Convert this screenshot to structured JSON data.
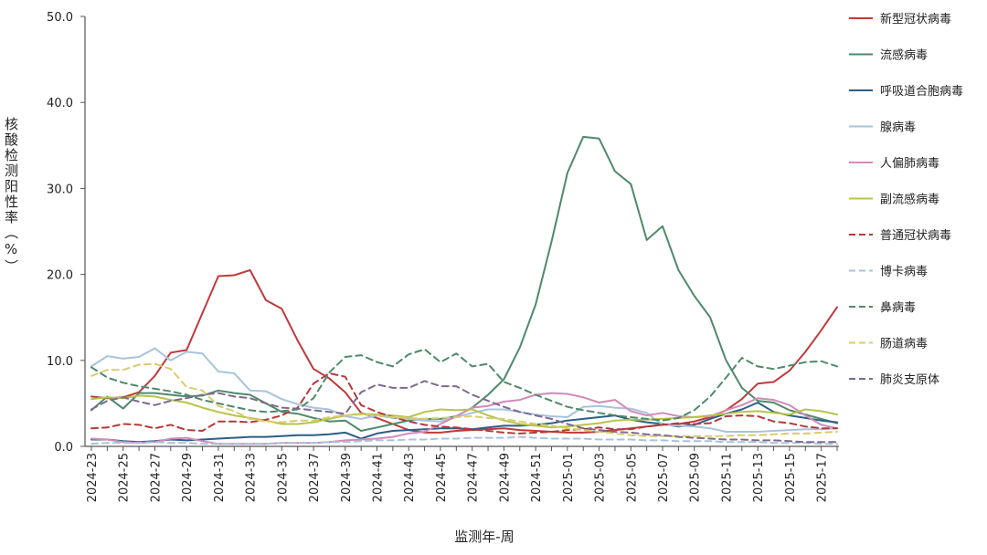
{
  "chart_data": {
    "type": "line",
    "title": "",
    "xlabel": "监测年-周",
    "ylabel": "核酸检测阳性率（%）",
    "ylim": [
      0,
      50
    ],
    "yticks": [
      "0.0",
      "10.0",
      "20.0",
      "30.0",
      "40.0",
      "50.0"
    ],
    "grid": false,
    "legend": "right",
    "x": [
      "2024-23",
      "2024-24",
      "2024-25",
      "2024-26",
      "2024-27",
      "2024-28",
      "2024-29",
      "2024-30",
      "2024-31",
      "2024-32",
      "2024-33",
      "2024-34",
      "2024-35",
      "2024-36",
      "2024-37",
      "2024-38",
      "2024-39",
      "2024-40",
      "2024-41",
      "2024-42",
      "2024-43",
      "2024-44",
      "2024-45",
      "2024-46",
      "2024-47",
      "2024-48",
      "2024-49",
      "2024-50",
      "2024-51",
      "2024-52",
      "2025-01",
      "2025-02",
      "2025-03",
      "2025-04",
      "2025-05",
      "2025-06",
      "2025-07",
      "2025-08",
      "2025-09",
      "2025-10",
      "2025-11",
      "2025-12",
      "2025-13",
      "2025-14",
      "2025-15",
      "2025-16",
      "2025-17",
      "2025-18"
    ],
    "xtick_labels": [
      "2024-23",
      "2024-25",
      "2024-27",
      "2024-29",
      "2024-31",
      "2024-33",
      "2024-35",
      "2024-37",
      "2024-39",
      "2024-41",
      "2024-43",
      "2024-45",
      "2024-47",
      "2024-49",
      "2024-51",
      "2025-01",
      "2025-03",
      "2025-05",
      "2025-07",
      "2025-09",
      "2025-11",
      "2025-13",
      "2025-15",
      "2025-17"
    ],
    "series": [
      {
        "name": "新型冠状病毒",
        "color": "#c0393b",
        "dash": "solid",
        "values": [
          5.8,
          5.6,
          5.7,
          6.3,
          8.2,
          10.9,
          11.2,
          15.5,
          19.8,
          19.9,
          20.5,
          17.0,
          16.0,
          12.3,
          9.0,
          7.9,
          6.3,
          3.9,
          3.3,
          2.6,
          1.9,
          1.6,
          1.6,
          1.8,
          1.9,
          2.0,
          2.1,
          1.9,
          1.8,
          1.7,
          1.6,
          1.6,
          1.7,
          1.9,
          2.1,
          2.3,
          2.5,
          2.6,
          2.9,
          3.4,
          4.2,
          5.5,
          7.3,
          7.5,
          8.8,
          11.0,
          13.5,
          16.2
        ]
      },
      {
        "name": "流感病毒",
        "color": "#4e8a69",
        "dash": "solid",
        "values": [
          4.2,
          5.8,
          4.4,
          6.2,
          6.2,
          6.0,
          5.8,
          5.9,
          6.5,
          6.2,
          6.0,
          5.0,
          4.0,
          3.8,
          3.3,
          2.9,
          3.0,
          1.8,
          2.2,
          2.6,
          3.0,
          3.2,
          3.2,
          3.5,
          4.5,
          6.0,
          7.8,
          11.5,
          16.5,
          23.8,
          31.8,
          36.0,
          35.8,
          32.0,
          30.5,
          24.0,
          25.6,
          20.5,
          17.5,
          15.0,
          10.0,
          6.8,
          5.3,
          5.1,
          4.2,
          3.7,
          3.2,
          2.7
        ]
      },
      {
        "name": "呼吸道合胞病毒",
        "color": "#2d5e86",
        "dash": "solid",
        "values": [
          0.8,
          0.8,
          0.6,
          0.5,
          0.6,
          0.8,
          0.7,
          0.8,
          0.9,
          1.0,
          1.1,
          1.1,
          1.2,
          1.3,
          1.3,
          1.4,
          1.6,
          0.9,
          1.5,
          1.8,
          1.9,
          2.0,
          2.1,
          2.1,
          2.0,
          2.2,
          2.4,
          2.4,
          2.5,
          2.7,
          3.0,
          3.2,
          3.4,
          3.6,
          3.1,
          2.8,
          2.6,
          2.3,
          2.5,
          3.2,
          3.8,
          4.3,
          5.1,
          4.0,
          3.6,
          3.3,
          3.0,
          2.8
        ]
      },
      {
        "name": "腺病毒",
        "color": "#a8c3dc",
        "dash": "solid",
        "values": [
          9.3,
          10.5,
          10.2,
          10.4,
          11.4,
          10.0,
          11.0,
          10.8,
          8.7,
          8.5,
          6.5,
          6.4,
          5.5,
          4.9,
          4.5,
          4.3,
          3.5,
          3.2,
          3.6,
          3.3,
          3.2,
          3.0,
          2.9,
          3.4,
          3.9,
          4.3,
          4.3,
          4.0,
          3.7,
          3.5,
          3.4,
          4.6,
          4.7,
          4.5,
          4.4,
          3.9,
          2.5,
          2.4,
          2.3,
          2.1,
          1.7,
          1.7,
          1.7,
          1.8,
          1.9,
          2.0,
          2.0,
          2.1
        ]
      },
      {
        "name": "人偏肺病毒",
        "color": "#d28ab8",
        "dash": "solid",
        "values": [
          0.9,
          0.8,
          0.5,
          0.4,
          0.5,
          0.9,
          1.0,
          0.6,
          0.3,
          0.3,
          0.3,
          0.3,
          0.4,
          0.4,
          0.4,
          0.5,
          0.7,
          0.8,
          0.9,
          1.1,
          1.5,
          1.7,
          2.6,
          3.5,
          4.5,
          4.7,
          5.2,
          5.4,
          6.0,
          6.2,
          6.1,
          5.7,
          5.1,
          5.4,
          4.1,
          3.6,
          3.9,
          3.5,
          3.4,
          3.5,
          4.2,
          4.8,
          5.6,
          5.4,
          4.8,
          3.6,
          2.5,
          2.1
        ]
      },
      {
        "name": "副流感病毒",
        "color": "#b6c44a",
        "dash": "solid",
        "values": [
          5.5,
          5.7,
          5.6,
          5.9,
          5.8,
          5.4,
          5.1,
          4.5,
          4.0,
          3.6,
          3.3,
          3.0,
          2.6,
          2.6,
          2.8,
          3.2,
          3.6,
          3.8,
          3.7,
          3.6,
          3.4,
          4.0,
          4.3,
          4.2,
          4.3,
          3.6,
          3.0,
          2.6,
          2.4,
          2.2,
          2.3,
          2.5,
          2.7,
          3.0,
          3.1,
          3.1,
          3.2,
          3.3,
          3.4,
          3.6,
          3.8,
          4.0,
          4.1,
          3.9,
          3.7,
          4.3,
          4.1,
          3.7
        ]
      },
      {
        "name": "普通冠状病毒",
        "color": "#b33a3a",
        "dash": "dash",
        "values": [
          2.1,
          2.2,
          2.6,
          2.5,
          2.1,
          2.5,
          1.9,
          1.8,
          2.9,
          2.9,
          2.8,
          3.1,
          3.6,
          4.5,
          7.3,
          8.5,
          8.1,
          4.8,
          4.0,
          3.4,
          2.9,
          2.5,
          2.3,
          2.2,
          2.0,
          1.8,
          1.6,
          1.5,
          1.6,
          1.7,
          1.9,
          2.0,
          2.2,
          2.0,
          2.0,
          2.3,
          2.5,
          2.7,
          2.6,
          2.7,
          3.5,
          3.6,
          3.5,
          2.9,
          2.7,
          2.3,
          2.1,
          2.1
        ]
      },
      {
        "name": "博卡病毒",
        "color": "#a8c3dc",
        "dash": "dash",
        "values": [
          0.3,
          0.4,
          0.4,
          0.4,
          0.5,
          0.4,
          0.4,
          0.3,
          0.3,
          0.3,
          0.3,
          0.3,
          0.4,
          0.4,
          0.4,
          0.5,
          0.5,
          0.6,
          0.7,
          0.7,
          0.8,
          0.8,
          0.9,
          0.9,
          1.0,
          1.0,
          1.0,
          1.1,
          1.0,
          0.9,
          0.9,
          0.9,
          0.8,
          0.8,
          0.8,
          0.7,
          0.7,
          0.6,
          0.6,
          0.6,
          0.5,
          0.5,
          0.5,
          0.4,
          0.4,
          0.4,
          0.3,
          0.3
        ]
      },
      {
        "name": "鼻病毒",
        "color": "#4e8a69",
        "dash": "dash",
        "values": [
          9.2,
          8.0,
          7.4,
          7.0,
          6.7,
          6.4,
          6.0,
          5.4,
          5.0,
          4.6,
          4.2,
          4.0,
          4.1,
          4.3,
          5.6,
          8.6,
          10.4,
          10.6,
          9.8,
          9.3,
          10.7,
          11.3,
          9.8,
          10.8,
          9.3,
          9.6,
          7.5,
          6.8,
          6.0,
          5.3,
          4.6,
          4.2,
          3.9,
          3.6,
          3.4,
          3.2,
          3.0,
          3.3,
          4.2,
          5.8,
          8.0,
          10.3,
          9.3,
          9.0,
          9.4,
          9.8,
          9.9,
          9.3
        ]
      },
      {
        "name": "肠道病毒",
        "color": "#d9cc6b",
        "dash": "dash",
        "values": [
          8.2,
          8.9,
          8.9,
          9.5,
          9.6,
          9.0,
          6.9,
          6.5,
          4.7,
          4.1,
          3.2,
          2.9,
          2.8,
          3.0,
          3.0,
          3.4,
          3.6,
          3.7,
          3.6,
          3.4,
          3.3,
          3.2,
          3.3,
          3.4,
          3.5,
          3.3,
          3.2,
          2.9,
          2.6,
          2.4,
          2.1,
          1.9,
          1.7,
          1.5,
          1.3,
          1.2,
          1.2,
          1.2,
          1.2,
          1.2,
          1.2,
          1.3,
          1.3,
          1.4,
          1.5,
          1.5,
          1.6,
          1.7
        ]
      },
      {
        "name": "肺炎支原体",
        "color": "#7e6a8c",
        "dash": "dash",
        "values": [
          4.3,
          5.3,
          5.7,
          5.2,
          4.8,
          5.3,
          5.6,
          6.0,
          6.2,
          5.8,
          5.6,
          5.0,
          4.5,
          4.4,
          4.2,
          4.0,
          3.8,
          6.3,
          7.2,
          6.8,
          6.8,
          7.6,
          7.0,
          7.0,
          6.0,
          5.3,
          4.6,
          4.0,
          3.6,
          3.2,
          2.6,
          2.1,
          1.9,
          1.7,
          1.6,
          1.4,
          1.3,
          1.1,
          1.0,
          0.9,
          0.8,
          0.8,
          0.7,
          0.7,
          0.6,
          0.5,
          0.5,
          0.5
        ]
      }
    ]
  }
}
